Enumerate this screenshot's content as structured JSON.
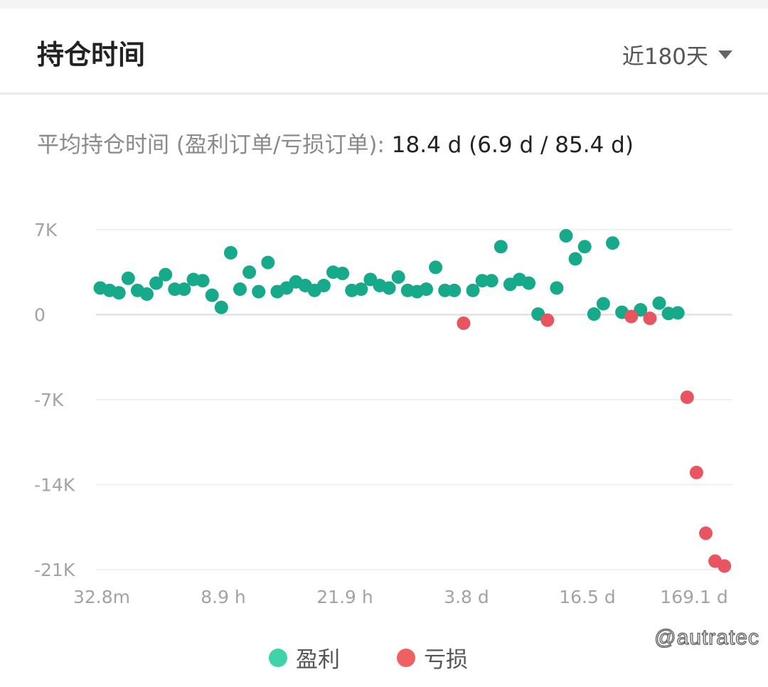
{
  "header": {
    "title": "持仓时间",
    "period_label": "近180天"
  },
  "summary": {
    "label": "平均持仓时间 (盈利订单/亏损订单):",
    "value": "18.4 d (6.9 d / 85.4 d)"
  },
  "chart_data": {
    "type": "scatter",
    "title": "",
    "xlabel": "",
    "ylabel": "",
    "x_tick_labels": [
      "32.8m",
      "8.9 h",
      "21.9 h",
      "3.8 d",
      "16.5 d",
      "169.1 d"
    ],
    "y_tick_labels": [
      "7K",
      "0",
      "-7K",
      "-14K",
      "-21K"
    ],
    "y_ticks": [
      7000,
      0,
      -7000,
      -14000,
      -21000
    ],
    "ylim": [
      -21000,
      7000
    ],
    "x_scale": "rank-ordered holding time (tick labels show holding time)",
    "grid": true,
    "legend_position": "bottom-center",
    "series": [
      {
        "name": "盈利",
        "color": "#16a98a",
        "legend_color": "#3fd3aa",
        "points": [
          [
            0,
            2200
          ],
          [
            1,
            2000
          ],
          [
            2,
            1800
          ],
          [
            3,
            3000
          ],
          [
            4,
            2000
          ],
          [
            5,
            1700
          ],
          [
            6,
            2600
          ],
          [
            7,
            3300
          ],
          [
            8,
            2100
          ],
          [
            9,
            2100
          ],
          [
            10,
            2900
          ],
          [
            11,
            2800
          ],
          [
            12,
            1600
          ],
          [
            13,
            600
          ],
          [
            14,
            5100
          ],
          [
            15,
            2100
          ],
          [
            16,
            3500
          ],
          [
            17,
            1900
          ],
          [
            18,
            4300
          ],
          [
            19,
            1900
          ],
          [
            20,
            2200
          ],
          [
            21,
            2700
          ],
          [
            22,
            2400
          ],
          [
            23,
            2000
          ],
          [
            24,
            2400
          ],
          [
            25,
            3500
          ],
          [
            26,
            3400
          ],
          [
            27,
            2000
          ],
          [
            28,
            2100
          ],
          [
            29,
            2900
          ],
          [
            30,
            2400
          ],
          [
            31,
            2200
          ],
          [
            32,
            3100
          ],
          [
            33,
            2000
          ],
          [
            34,
            1900
          ],
          [
            35,
            2100
          ],
          [
            36,
            3900
          ],
          [
            37,
            2000
          ],
          [
            38,
            2000
          ],
          [
            40,
            2000
          ],
          [
            41,
            2800
          ],
          [
            42,
            2800
          ],
          [
            43,
            5600
          ],
          [
            44,
            2500
          ],
          [
            45,
            2900
          ],
          [
            46,
            2600
          ],
          [
            47,
            50
          ],
          [
            49,
            2200
          ],
          [
            50,
            6500
          ],
          [
            51,
            4600
          ],
          [
            52,
            5600
          ],
          [
            53,
            50
          ],
          [
            54,
            900
          ],
          [
            55,
            5900
          ],
          [
            56,
            200
          ],
          [
            58,
            400
          ],
          [
            60,
            950
          ],
          [
            61,
            100
          ],
          [
            62,
            150
          ]
        ]
      },
      {
        "name": "亏损",
        "color": "#e85560",
        "legend_color": "#f06060",
        "points": [
          [
            39,
            -700
          ],
          [
            48,
            -450
          ],
          [
            57,
            -150
          ],
          [
            59,
            -300
          ],
          [
            63,
            -6800
          ],
          [
            64,
            -13000
          ],
          [
            65,
            -18000
          ],
          [
            66,
            -20300
          ],
          [
            67,
            -20700
          ]
        ]
      }
    ]
  },
  "watermark": "@autratec"
}
